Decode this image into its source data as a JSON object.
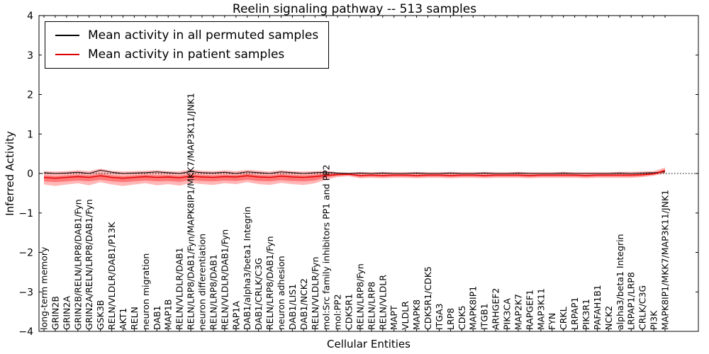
{
  "chart_data": {
    "type": "line",
    "title": "Reelin signaling pathway -- 513 samples",
    "xlabel": "Cellular Entities",
    "ylabel": "Inferred Activity",
    "ylim": [
      -4,
      4
    ],
    "yticks": [
      -4,
      -3,
      -2,
      -1,
      0,
      1,
      2,
      3,
      4
    ],
    "grid": false,
    "legend_position": "upper left",
    "zero_line": true,
    "categories": [
      "long-term memory",
      "GRIN2B",
      "GRIN2A",
      "GRIN2B/RELN/LRP8/DAB1/Fyn",
      "GRIN2A/RELN/LRP8/DAB1/Fyn",
      "GSK3B",
      "RELN/VLDLR/DAB1/P13K",
      "AKT1",
      "RELN",
      "neuron migration",
      "DAB1",
      "MAP1B",
      "RELN/VLDLR/DAB1",
      "RELN/LRP8/DAB1/Fyn/MAPK8IP1/MKK7/MAP3K11/JNK1",
      "neuron differentiation",
      "RELN/LRP8/DAB1",
      "RELN/VLDLR/DAB1/Fyn",
      "RAP1A",
      "DAB1/alpha3/beta1 Integrin",
      "DAB1/CRLK/C3G",
      "RELN/LRP8/DAB1/Fyn",
      "neuron adhesion",
      "DAB1/LIS1",
      "DAB1/NCK2",
      "RELN/VLDLR/Fyn",
      "mol:Src family inhibitors PP1 and PP2",
      "mol:PP2",
      "CDK5R1",
      "RELN/LRP8/Fyn",
      "RELN/LRP8",
      "RELN/VLDLR",
      "MAPT",
      "VLDLR",
      "MAPK8",
      "CDK5R1/CDK5",
      "ITGA3",
      "LRP8",
      "CDK5",
      "MAPK8IP1",
      "ITGB1",
      "ARHGEF2",
      "PIK3CA",
      "MAP2K7",
      "RAPGEF1",
      "MAP3K11",
      "FYN",
      "CRKL",
      "LRPAP1",
      "PIK3R1",
      "PAFAH1B1",
      "NCK2",
      "alpha3/beta1 Integrin",
      "LRPAP1/LRP8",
      "CRLK/C3G",
      "PI3K",
      "MAPK8IP1/MKK7/MAP3K11/JNK1"
    ],
    "series": [
      {
        "name": "Mean activity in all permuted samples",
        "color": "#000000",
        "values": [
          0.02,
          0.0,
          0.01,
          0.03,
          0.0,
          0.08,
          0.03,
          0.0,
          0.01,
          0.02,
          0.04,
          0.02,
          0.0,
          0.05,
          0.02,
          0.01,
          0.03,
          0.0,
          0.04,
          0.02,
          0.0,
          0.04,
          0.02,
          0.0,
          0.02,
          0.03,
          0.01,
          0.0,
          0.01,
          0.0,
          0.01,
          0.0,
          0.0,
          0.01,
          0.0,
          0.0,
          0.01,
          0.0,
          0.0,
          0.01,
          0.0,
          0.0,
          0.01,
          0.0,
          0.0,
          0.0,
          0.01,
          0.0,
          0.0,
          0.0,
          0.0,
          0.01,
          0.0,
          0.01,
          0.02,
          0.04
        ]
      },
      {
        "name": "Mean activity in patient samples",
        "color": "#e00000",
        "values": [
          -0.1,
          -0.12,
          -0.1,
          -0.08,
          -0.1,
          -0.06,
          -0.1,
          -0.12,
          -0.1,
          -0.08,
          -0.1,
          -0.09,
          -0.11,
          -0.07,
          -0.09,
          -0.1,
          -0.08,
          -0.09,
          -0.06,
          -0.09,
          -0.1,
          -0.07,
          -0.09,
          -0.1,
          -0.08,
          -0.05,
          -0.03,
          -0.02,
          -0.05,
          -0.04,
          -0.05,
          -0.04,
          -0.04,
          -0.05,
          -0.04,
          -0.04,
          -0.05,
          -0.04,
          -0.04,
          -0.05,
          -0.04,
          -0.04,
          -0.04,
          -0.05,
          -0.04,
          -0.04,
          -0.04,
          -0.04,
          -0.05,
          -0.04,
          -0.04,
          -0.04,
          -0.04,
          -0.03,
          -0.01,
          0.07
        ]
      }
    ],
    "bands": [
      {
        "name": "patient-samples-outer-band",
        "color": "rgba(255,0,0,0.28)",
        "upper": [
          0.06,
          0.05,
          0.06,
          0.08,
          0.06,
          0.12,
          0.07,
          0.05,
          0.06,
          0.07,
          0.08,
          0.06,
          0.05,
          0.1,
          0.07,
          0.06,
          0.08,
          0.06,
          0.09,
          0.07,
          0.05,
          0.08,
          0.06,
          0.05,
          0.06,
          0.07,
          0.03,
          0.02,
          0.04,
          0.03,
          0.04,
          0.03,
          0.03,
          0.04,
          0.03,
          0.03,
          0.04,
          0.03,
          0.03,
          0.04,
          0.03,
          0.03,
          0.04,
          0.03,
          0.03,
          0.03,
          0.04,
          0.03,
          0.03,
          0.03,
          0.03,
          0.04,
          0.04,
          0.05,
          0.06,
          0.15
        ],
        "lower": [
          -0.28,
          -0.32,
          -0.28,
          -0.25,
          -0.3,
          -0.22,
          -0.28,
          -0.32,
          -0.28,
          -0.25,
          -0.3,
          -0.27,
          -0.31,
          -0.24,
          -0.27,
          -0.29,
          -0.25,
          -0.27,
          -0.22,
          -0.27,
          -0.29,
          -0.24,
          -0.27,
          -0.29,
          -0.25,
          -0.16,
          -0.09,
          -0.07,
          -0.12,
          -0.11,
          -0.12,
          -0.11,
          -0.11,
          -0.12,
          -0.11,
          -0.11,
          -0.12,
          -0.11,
          -0.11,
          -0.12,
          -0.11,
          -0.11,
          -0.11,
          -0.12,
          -0.11,
          -0.11,
          -0.11,
          -0.11,
          -0.12,
          -0.11,
          -0.11,
          -0.11,
          -0.11,
          -0.09,
          -0.06,
          0.0
        ]
      },
      {
        "name": "patient-samples-inner-band",
        "color": "rgba(255,0,0,0.35)",
        "upper": [
          -0.05,
          -0.07,
          -0.05,
          -0.03,
          -0.05,
          -0.01,
          -0.05,
          -0.07,
          -0.05,
          -0.03,
          -0.05,
          -0.04,
          -0.06,
          -0.02,
          -0.04,
          -0.05,
          -0.03,
          -0.04,
          -0.01,
          -0.04,
          -0.05,
          -0.02,
          -0.04,
          -0.05,
          -0.03,
          0.0,
          0.0,
          0.0,
          -0.03,
          -0.02,
          -0.03,
          -0.02,
          -0.02,
          -0.03,
          -0.02,
          -0.02,
          -0.03,
          -0.02,
          -0.02,
          -0.03,
          -0.02,
          -0.02,
          -0.02,
          -0.03,
          -0.02,
          -0.02,
          -0.02,
          -0.02,
          -0.03,
          -0.02,
          -0.02,
          -0.02,
          -0.02,
          -0.01,
          0.01,
          0.11
        ],
        "lower": [
          -0.2,
          -0.22,
          -0.2,
          -0.18,
          -0.2,
          -0.16,
          -0.2,
          -0.22,
          -0.2,
          -0.18,
          -0.2,
          -0.19,
          -0.21,
          -0.17,
          -0.19,
          -0.2,
          -0.18,
          -0.19,
          -0.16,
          -0.19,
          -0.2,
          -0.17,
          -0.19,
          -0.2,
          -0.18,
          -0.1,
          -0.06,
          -0.05,
          -0.09,
          -0.08,
          -0.09,
          -0.08,
          -0.08,
          -0.09,
          -0.08,
          -0.08,
          -0.09,
          -0.08,
          -0.08,
          -0.09,
          -0.08,
          -0.08,
          -0.08,
          -0.09,
          -0.08,
          -0.08,
          -0.08,
          -0.08,
          -0.09,
          -0.08,
          -0.08,
          -0.08,
          -0.08,
          -0.07,
          -0.03,
          0.03
        ]
      }
    ]
  }
}
